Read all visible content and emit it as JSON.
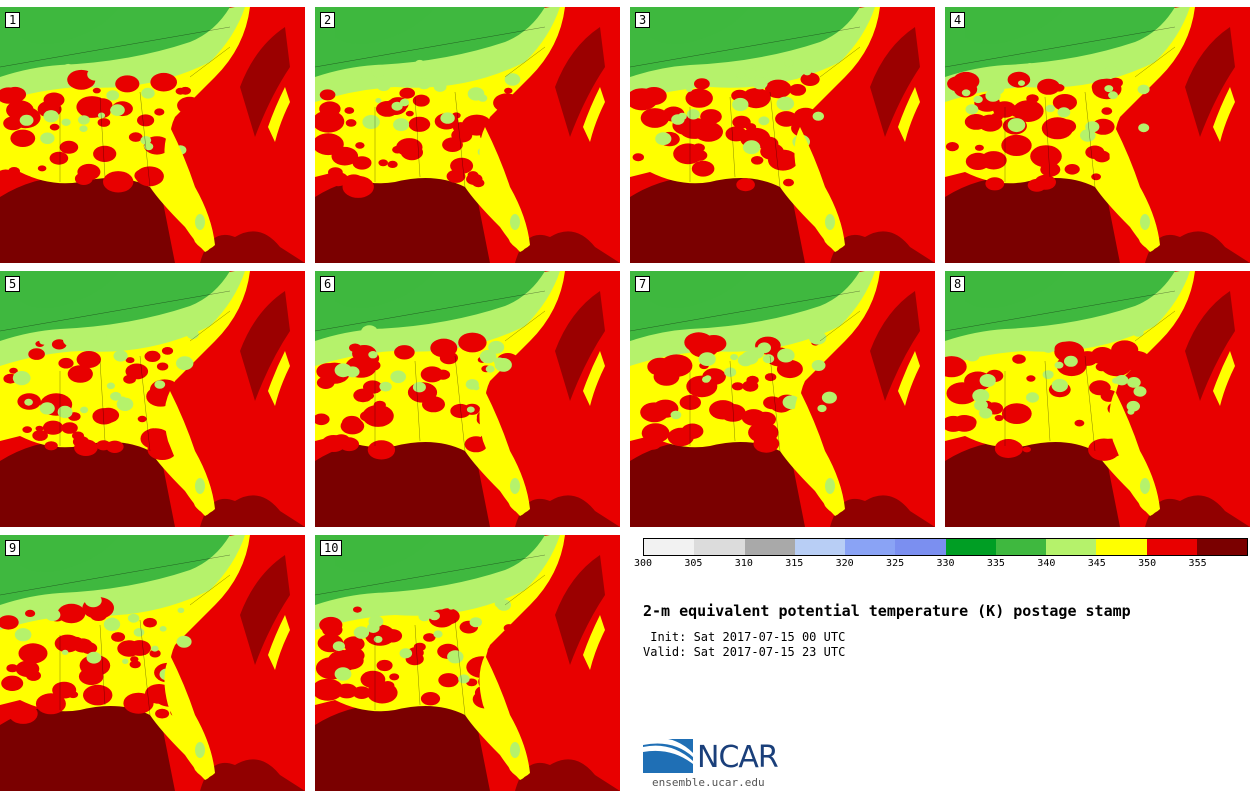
{
  "panels": [
    {
      "label": "1"
    },
    {
      "label": "2"
    },
    {
      "label": "3"
    },
    {
      "label": "4"
    },
    {
      "label": "5"
    },
    {
      "label": "6"
    },
    {
      "label": "7"
    },
    {
      "label": "8"
    },
    {
      "label": "9"
    },
    {
      "label": "10"
    }
  ],
  "colorbar": {
    "colors": [
      "#f2f2f2",
      "#dcdcdc",
      "#a9a9a9",
      "#b8cef5",
      "#8aa3f5",
      "#7b8ff0",
      "#009e24",
      "#3fb83f",
      "#b5f26b",
      "#ffff00",
      "#e80000",
      "#7a0000"
    ],
    "ticks": [
      "300",
      "305",
      "310",
      "315",
      "320",
      "325",
      "330",
      "335",
      "340",
      "345",
      "350",
      "355"
    ]
  },
  "title": "2-m equivalent potential temperature (K) postage stamp",
  "init": " Init: Sat 2017-07-15 00 UTC",
  "valid": "Valid: Sat 2017-07-15 23 UTC",
  "logo": {
    "text": "NCAR",
    "website": "ensemble.ucar.edu"
  },
  "map_colors": {
    "ocean": "#e80000",
    "deep": "#7a0000",
    "yellow": "#ffff00",
    "lightgreen": "#b5f26b",
    "green": "#3fb83f"
  }
}
